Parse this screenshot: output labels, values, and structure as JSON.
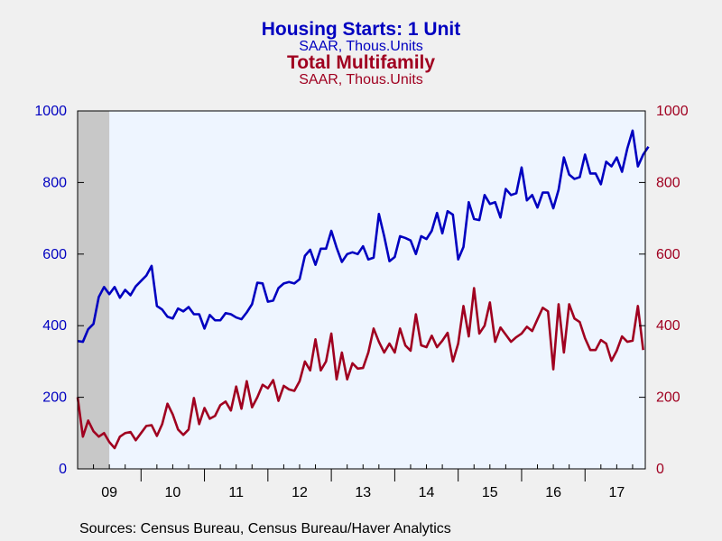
{
  "chart_data": {
    "type": "line",
    "colors": {
      "left": "#0000c0",
      "right": "#a00020",
      "plot_bg": "#eef5ff",
      "recession": "#c8c8c8"
    },
    "titles": [
      {
        "title": "Housing Starts: 1 Unit",
        "subtitle": "SAAR, Thous.Units",
        "color": "#0000c0"
      },
      {
        "title": "Total Multifamily",
        "subtitle": "SAAR, Thous.Units",
        "color": "#a00020"
      }
    ],
    "x_range": [
      2009.0,
      2017.95
    ],
    "x_ticks": [
      "09",
      "10",
      "11",
      "12",
      "13",
      "14",
      "15",
      "16",
      "17"
    ],
    "recession_shading": [
      2009.0,
      2009.5
    ],
    "y_left": {
      "range": [
        0,
        1000
      ],
      "ticks": [
        "0",
        "200",
        "400",
        "600",
        "800",
        "1000"
      ]
    },
    "y_right": {
      "range": [
        0,
        1000
      ],
      "ticks": [
        "0",
        "200",
        "400",
        "600",
        "800",
        "1000"
      ]
    },
    "series": [
      {
        "name": "Housing Starts: 1 Unit",
        "axis": "left",
        "start": 2009.0,
        "freq": "monthly",
        "values": [
          357,
          355,
          390,
          405,
          480,
          508,
          488,
          508,
          478,
          500,
          485,
          510,
          525,
          540,
          567,
          455,
          445,
          425,
          420,
          448,
          440,
          452,
          432,
          432,
          392,
          430,
          415,
          415,
          435,
          432,
          423,
          418,
          437,
          460,
          520,
          518,
          467,
          470,
          505,
          518,
          522,
          518,
          530,
          595,
          612,
          570,
          615,
          615,
          665,
          618,
          578,
          600,
          605,
          600,
          622,
          585,
          590,
          712,
          650,
          580,
          592,
          650,
          645,
          638,
          600,
          650,
          642,
          665,
          715,
          658,
          720,
          710,
          585,
          620,
          745,
          698,
          695,
          765,
          740,
          745,
          702,
          782,
          765,
          770,
          842,
          750,
          765,
          730,
          772,
          772,
          728,
          780,
          870,
          822,
          810,
          815,
          878,
          825,
          825,
          795,
          858,
          845,
          870,
          830,
          895,
          945,
          845,
          878,
          900
        ]
      },
      {
        "name": "Total Multifamily",
        "axis": "right",
        "start": 2009.0,
        "freq": "monthly",
        "values": [
          200,
          90,
          135,
          105,
          90,
          100,
          75,
          58,
          90,
          100,
          103,
          80,
          100,
          120,
          122,
          92,
          125,
          182,
          152,
          110,
          95,
          110,
          198,
          125,
          170,
          140,
          148,
          178,
          188,
          163,
          230,
          168,
          245,
          172,
          200,
          235,
          225,
          248,
          190,
          232,
          222,
          218,
          245,
          300,
          275,
          362,
          275,
          300,
          378,
          250,
          325,
          250,
          295,
          280,
          282,
          325,
          392,
          355,
          325,
          350,
          325,
          392,
          345,
          330,
          432,
          345,
          340,
          372,
          340,
          358,
          380,
          300,
          350,
          455,
          370,
          505,
          378,
          400,
          465,
          355,
          395,
          375,
          355,
          368,
          378,
          397,
          385,
          418,
          450,
          440,
          278,
          460,
          325,
          460,
          420,
          410,
          365,
          332,
          332,
          360,
          350,
          302,
          330,
          370,
          355,
          358,
          455,
          332
        ]
      }
    ]
  },
  "source_text": "Sources:  Census Bureau, Census Bureau/Haver Analytics"
}
